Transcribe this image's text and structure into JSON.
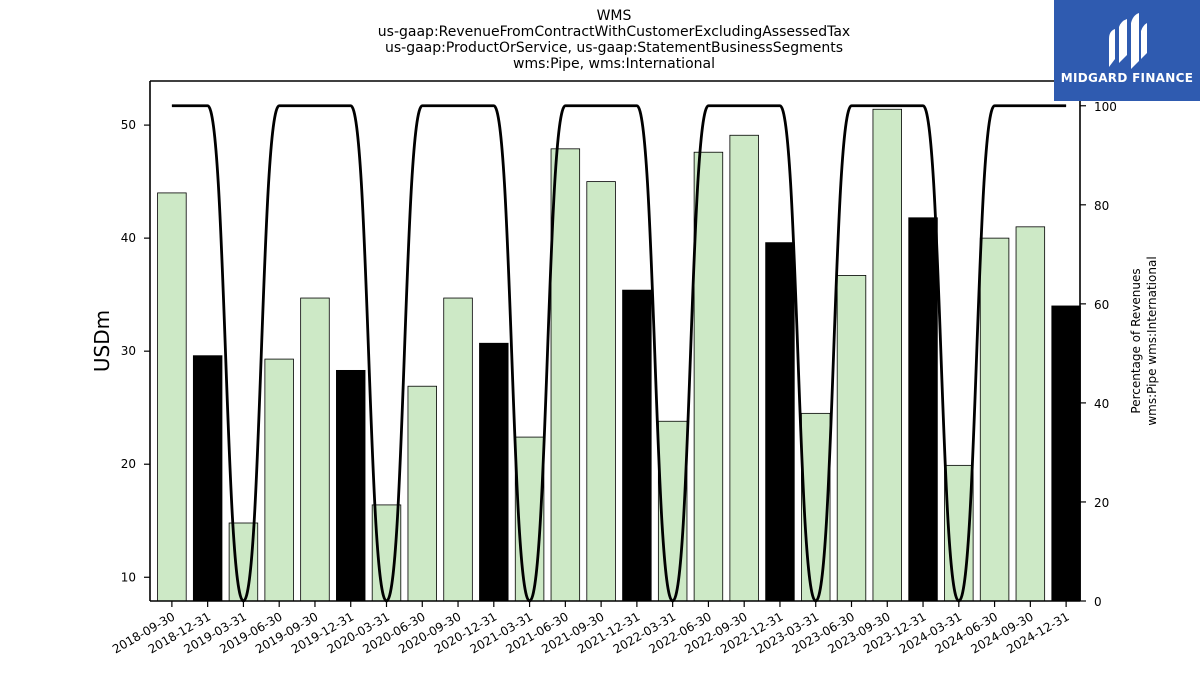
{
  "chart_data": {
    "type": "bar",
    "title_lines": [
      "WMS",
      "us-gaap:RevenueFromContractWithCustomerExcludingAssessedTax",
      "us-gaap:ProductOrService, us-gaap:StatementBusinessSegments",
      "wms:Pipe, wms:International"
    ],
    "ylabel": "USDm",
    "y2label_lines": [
      "Percentage of Revenues",
      "wms:Pipe wms:International"
    ],
    "ylim": [
      7.9,
      53.9
    ],
    "y2lim": [
      0,
      105
    ],
    "yticks": [
      10,
      20,
      30,
      40,
      50
    ],
    "y2ticks": [
      0,
      20,
      40,
      60,
      80,
      100
    ],
    "categories": [
      "2018-09-30",
      "2018-12-31",
      "2019-03-31",
      "2019-06-30",
      "2019-09-30",
      "2019-12-31",
      "2020-03-31",
      "2020-06-30",
      "2020-09-30",
      "2020-12-31",
      "2021-03-31",
      "2021-06-30",
      "2021-09-30",
      "2021-12-31",
      "2022-03-31",
      "2022-06-30",
      "2022-09-30",
      "2022-12-31",
      "2023-03-31",
      "2023-06-30",
      "2023-09-30",
      "2023-12-31",
      "2024-03-31",
      "2024-06-30",
      "2024-09-30",
      "2024-12-31"
    ],
    "values": [
      44.0,
      29.6,
      14.8,
      29.3,
      34.7,
      28.3,
      16.4,
      26.9,
      34.7,
      30.7,
      22.4,
      47.9,
      45.0,
      35.4,
      23.8,
      47.6,
      49.1,
      39.6,
      24.5,
      36.7,
      51.4,
      41.8,
      19.9,
      40.0,
      41.0,
      34.0
    ],
    "bar_colors": [
      "#cde9c6",
      "#000000",
      "#cde9c6",
      "#cde9c6",
      "#cde9c6",
      "#000000",
      "#cde9c6",
      "#cde9c6",
      "#cde9c6",
      "#000000",
      "#cde9c6",
      "#cde9c6",
      "#cde9c6",
      "#000000",
      "#cde9c6",
      "#cde9c6",
      "#cde9c6",
      "#000000",
      "#cde9c6",
      "#cde9c6",
      "#cde9c6",
      "#000000",
      "#cde9c6",
      "#cde9c6",
      "#cde9c6",
      "#000000"
    ],
    "percentage": [
      100,
      100,
      0,
      100,
      100,
      100,
      0,
      100,
      100,
      100,
      0,
      100,
      100,
      100,
      0,
      100,
      100,
      100,
      0,
      100,
      100,
      100,
      0,
      100,
      100,
      100
    ],
    "line_color": "#000000"
  },
  "logo": {
    "text": "MIDGARD FINANCE",
    "background": "#2f5bb0"
  }
}
